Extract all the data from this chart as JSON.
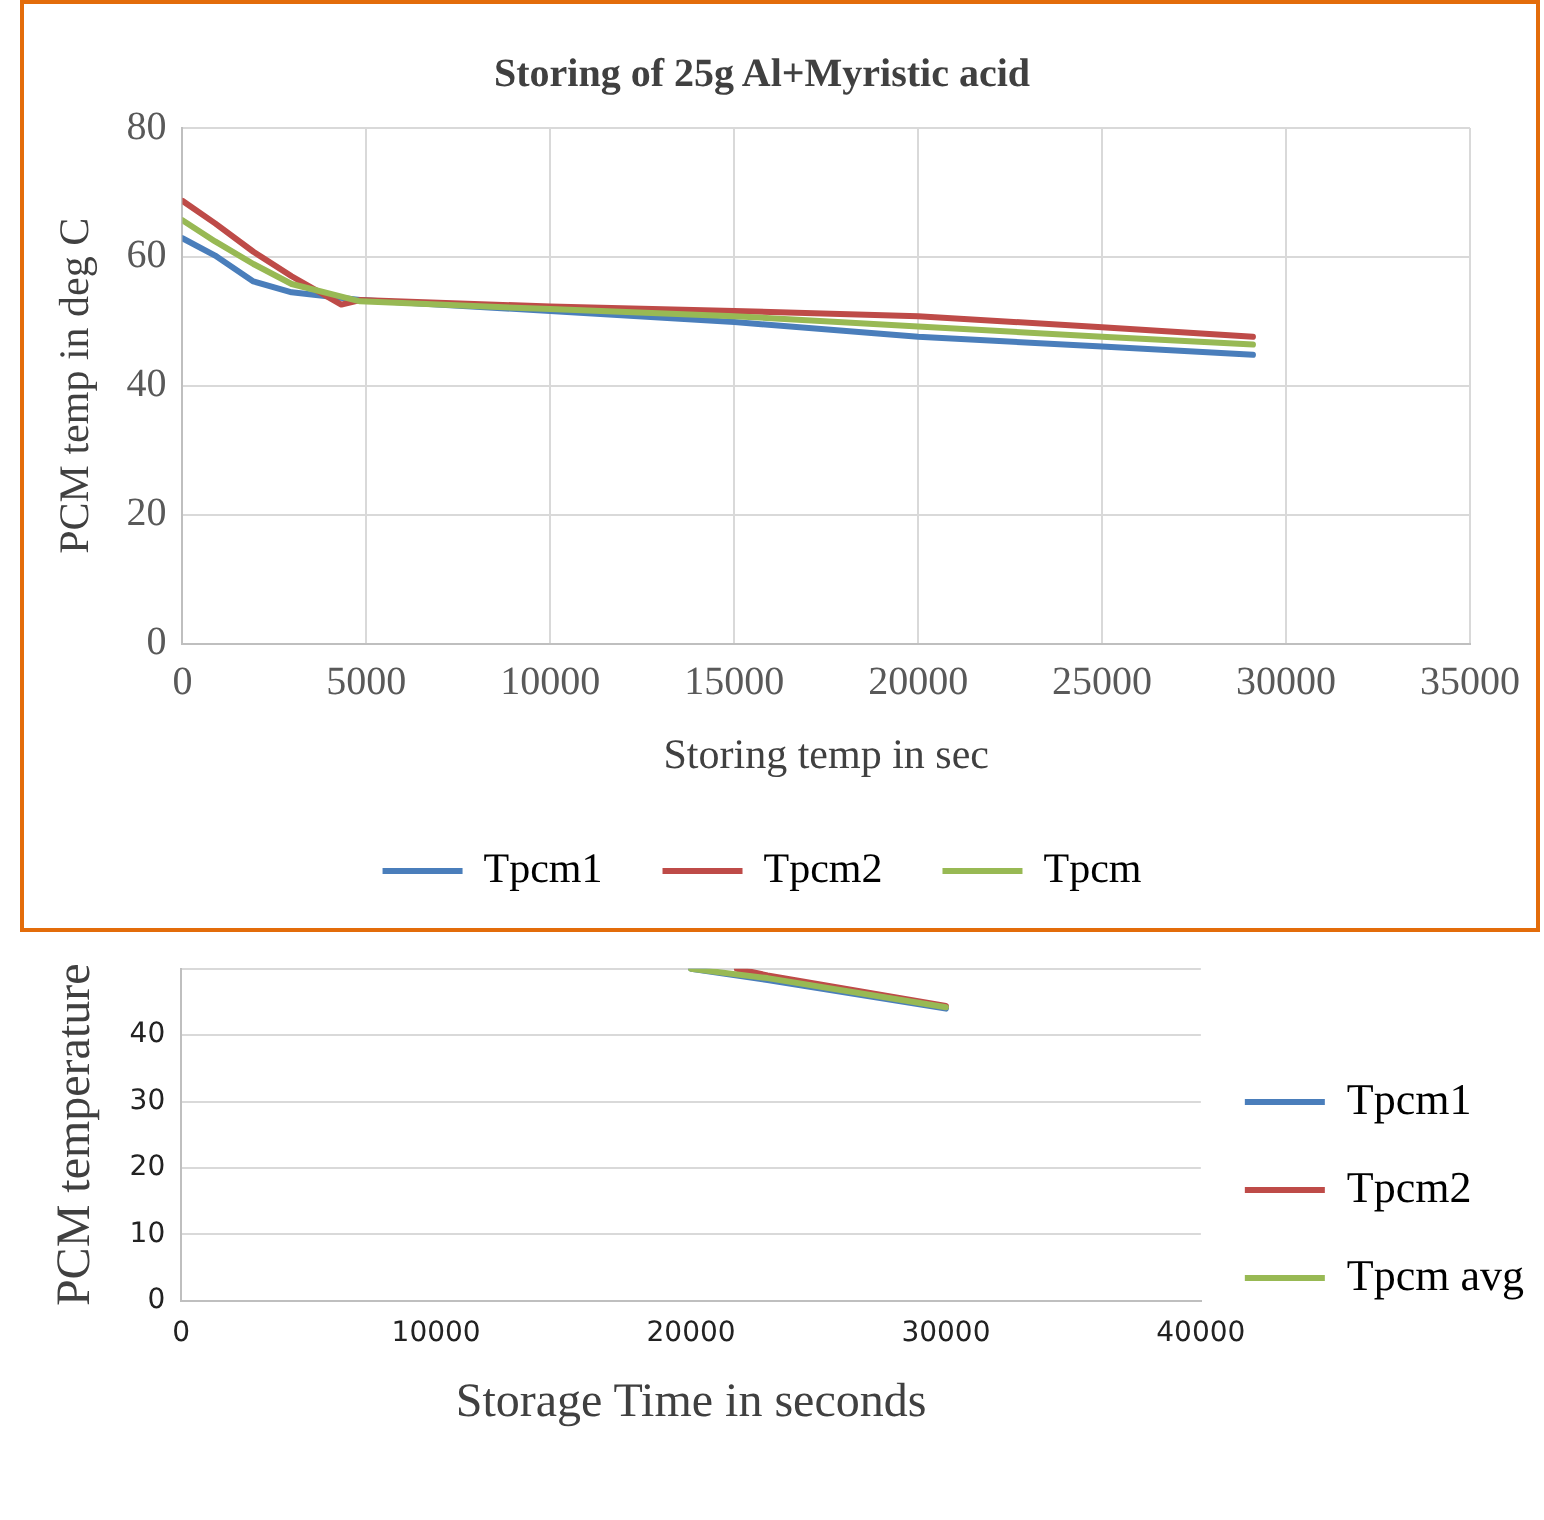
{
  "chart_data": [
    {
      "type": "line",
      "title": "Storing of 25g Al+Myristic acid",
      "xlabel": "Storing temp in sec",
      "ylabel": "PCM temp in deg C",
      "xlim": [
        0,
        35000
      ],
      "xticks": [
        0,
        5000,
        10000,
        15000,
        20000,
        25000,
        30000,
        35000
      ],
      "ylim": [
        0,
        80
      ],
      "yticks": [
        0,
        20,
        40,
        60,
        80
      ],
      "grid": true,
      "legend": "bottom",
      "marker": "none",
      "line_style": "solid",
      "series": [
        {
          "name": "Tpcm1",
          "color": "#4a7ebb",
          "x": [
            0,
            890,
            1930,
            2970,
            4830,
            10000,
            15000,
            20000,
            25000,
            29100
          ],
          "values": [
            62.9,
            60.2,
            56.2,
            54.5,
            53.3,
            51.6,
            49.9,
            47.6,
            46.1,
            44.8
          ]
        },
        {
          "name": "Tpcm2",
          "color": "#be4b48",
          "x": [
            0,
            890,
            1930,
            2970,
            4320,
            4830,
            10000,
            15000,
            20000,
            25000,
            29100
          ],
          "values": [
            68.7,
            65.2,
            60.8,
            57,
            52.6,
            53.3,
            52.3,
            51.6,
            50.8,
            49.1,
            47.6
          ]
        },
        {
          "name": "Tpcm",
          "color": "#98b954",
          "x": [
            0,
            890,
            1930,
            2970,
            4830,
            10000,
            15000,
            20000,
            25000,
            29100
          ],
          "values": [
            65.7,
            62.4,
            58.9,
            55.8,
            53.1,
            51.9,
            50.8,
            49.2,
            47.6,
            46.4
          ]
        }
      ]
    },
    {
      "type": "line",
      "xlabel": "Storage Time in seconds",
      "ylabel": "PCM temperature",
      "xlim": [
        0,
        40000
      ],
      "xticks": [
        0,
        10000,
        20000,
        30000,
        40000
      ],
      "ylim": [
        0,
        50
      ],
      "yticks": [
        0,
        10,
        20,
        30,
        40,
        {
          "value": 50,
          "label": null
        }
      ],
      "grid": "y",
      "legend": "right",
      "marker": "none",
      "line_style": "solid",
      "series": [
        {
          "name": "Tpcm1",
          "color": "#4a7ebb",
          "x": [
            20000,
            23000,
            30000
          ],
          "values": [
            50,
            48.3,
            44
          ]
        },
        {
          "name": "Tpcm2",
          "color": "#be4b48",
          "x": [
            21800,
            23000,
            30000
          ],
          "values": [
            50,
            49,
            44.4
          ]
        },
        {
          "name": "Tpcm avg",
          "color": "#98b954",
          "x": [
            20000,
            23000,
            30000
          ],
          "values": [
            50,
            48.6,
            44.2
          ]
        }
      ]
    }
  ]
}
